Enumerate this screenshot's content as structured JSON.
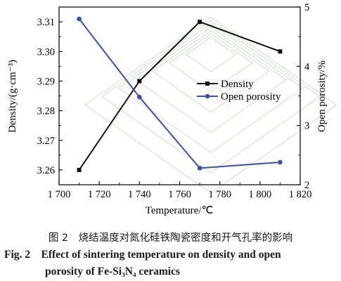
{
  "chart_data": {
    "type": "line",
    "x": [
      1710,
      1740,
      1770,
      1810
    ],
    "xlim": [
      1700,
      1820
    ],
    "xticks": [
      1700,
      1720,
      1740,
      1760,
      1780,
      1800,
      1820
    ],
    "xtick_labels": [
      "1 700",
      "1 720",
      "1 740",
      "1 760",
      "1 780",
      "1 800",
      "1 820"
    ],
    "xlabel": "Temperature/℃",
    "ylabel_left": "Density/(g·cm⁻³)",
    "ylim_left": [
      3.255,
      3.315
    ],
    "yticks_left": [
      "3.26",
      "3.27",
      "3.28",
      "3.29",
      "3.30",
      "3.31"
    ],
    "ylabel_right": "Open porosity/%",
    "ylim_right": [
      2,
      5
    ],
    "yticks_right": [
      "2",
      "3",
      "4",
      "5"
    ],
    "series": [
      {
        "name": "Density",
        "axis": "left",
        "color": "#111111",
        "marker": "square",
        "values": [
          3.26,
          3.29,
          3.31,
          3.3
        ]
      },
      {
        "name": "Open porosity",
        "axis": "right",
        "color": "#3b4fa0",
        "marker": "circle",
        "values": [
          4.8,
          3.48,
          2.28,
          2.38
        ]
      }
    ],
    "legend": "center-right"
  },
  "caption": {
    "cn": "图 2　烧结温度对氮化硅铁陶瓷密度和开气孔率的影响",
    "en_line1": "Fig. 2　Effect of sintering temperature on density and open",
    "en_line2": "porosity of Fe-Si₃N₄ ceramics"
  }
}
